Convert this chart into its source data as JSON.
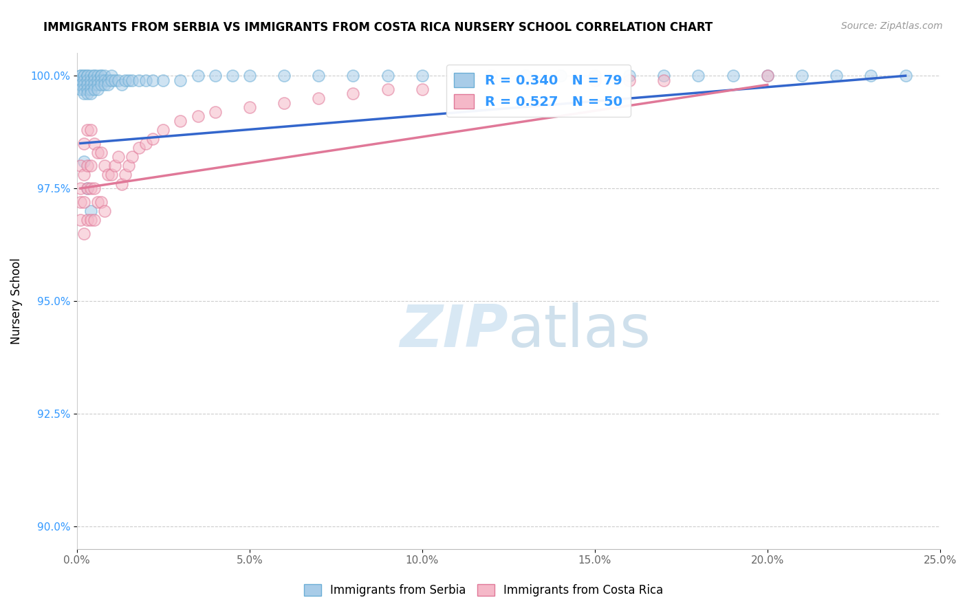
{
  "title": "IMMIGRANTS FROM SERBIA VS IMMIGRANTS FROM COSTA RICA NURSERY SCHOOL CORRELATION CHART",
  "source": "Source: ZipAtlas.com",
  "ylabel": "Nursery School",
  "xlim": [
    0.0,
    0.25
  ],
  "ylim": [
    0.895,
    1.005
  ],
  "xticks": [
    0.0,
    0.05,
    0.1,
    0.15,
    0.2,
    0.25
  ],
  "xticklabels": [
    "0.0%",
    "5.0%",
    "10.0%",
    "15.0%",
    "20.0%",
    "25.0%"
  ],
  "yticks": [
    0.9,
    0.925,
    0.95,
    0.975,
    1.0
  ],
  "yticklabels": [
    "90.0%",
    "92.5%",
    "95.0%",
    "97.5%",
    "100.0%"
  ],
  "serbia_color": "#a8cce8",
  "costarica_color": "#f5b8c8",
  "serbia_edge": "#6baed6",
  "costarica_edge": "#e07898",
  "serbia_line_color": "#3366cc",
  "costarica_line_color": "#e07898",
  "serbia_R": 0.34,
  "serbia_N": 79,
  "costarica_R": 0.527,
  "costarica_N": 50,
  "legend_label_serbia": "Immigrants from Serbia",
  "legend_label_costarica": "Immigrants from Costa Rica",
  "serbia_x": [
    0.001,
    0.001,
    0.001,
    0.001,
    0.001,
    0.002,
    0.002,
    0.002,
    0.002,
    0.002,
    0.002,
    0.003,
    0.003,
    0.003,
    0.003,
    0.003,
    0.003,
    0.004,
    0.004,
    0.004,
    0.004,
    0.004,
    0.005,
    0.005,
    0.005,
    0.005,
    0.005,
    0.006,
    0.006,
    0.006,
    0.006,
    0.007,
    0.007,
    0.007,
    0.007,
    0.008,
    0.008,
    0.008,
    0.009,
    0.009,
    0.01,
    0.01,
    0.011,
    0.012,
    0.013,
    0.014,
    0.015,
    0.016,
    0.018,
    0.02,
    0.022,
    0.025,
    0.03,
    0.035,
    0.04,
    0.045,
    0.05,
    0.06,
    0.07,
    0.08,
    0.09,
    0.1,
    0.11,
    0.12,
    0.13,
    0.14,
    0.15,
    0.16,
    0.17,
    0.18,
    0.19,
    0.2,
    0.21,
    0.22,
    0.23,
    0.24,
    0.002,
    0.003,
    0.004
  ],
  "serbia_y": [
    1.0,
    1.0,
    0.999,
    0.998,
    0.997,
    1.0,
    1.0,
    0.999,
    0.998,
    0.997,
    0.996,
    1.0,
    1.0,
    0.999,
    0.998,
    0.997,
    0.996,
    1.0,
    0.999,
    0.998,
    0.997,
    0.996,
    1.0,
    1.0,
    0.999,
    0.998,
    0.997,
    1.0,
    0.999,
    0.998,
    0.997,
    1.0,
    1.0,
    0.999,
    0.998,
    1.0,
    0.999,
    0.998,
    0.999,
    0.998,
    1.0,
    0.999,
    0.999,
    0.999,
    0.998,
    0.999,
    0.999,
    0.999,
    0.999,
    0.999,
    0.999,
    0.999,
    0.999,
    1.0,
    1.0,
    1.0,
    1.0,
    1.0,
    1.0,
    1.0,
    1.0,
    1.0,
    1.0,
    1.0,
    1.0,
    1.0,
    1.0,
    1.0,
    1.0,
    1.0,
    1.0,
    1.0,
    1.0,
    1.0,
    1.0,
    1.0,
    0.981,
    0.975,
    0.97
  ],
  "costarica_x": [
    0.001,
    0.001,
    0.001,
    0.001,
    0.002,
    0.002,
    0.002,
    0.002,
    0.003,
    0.003,
    0.003,
    0.003,
    0.004,
    0.004,
    0.004,
    0.004,
    0.005,
    0.005,
    0.005,
    0.006,
    0.006,
    0.007,
    0.007,
    0.008,
    0.008,
    0.009,
    0.01,
    0.011,
    0.012,
    0.013,
    0.014,
    0.015,
    0.016,
    0.018,
    0.02,
    0.022,
    0.025,
    0.03,
    0.035,
    0.04,
    0.05,
    0.06,
    0.07,
    0.08,
    0.09,
    0.1,
    0.15,
    0.16,
    0.17,
    0.2
  ],
  "costarica_y": [
    0.98,
    0.975,
    0.972,
    0.968,
    0.985,
    0.978,
    0.972,
    0.965,
    0.988,
    0.98,
    0.975,
    0.968,
    0.988,
    0.98,
    0.975,
    0.968,
    0.985,
    0.975,
    0.968,
    0.983,
    0.972,
    0.983,
    0.972,
    0.98,
    0.97,
    0.978,
    0.978,
    0.98,
    0.982,
    0.976,
    0.978,
    0.98,
    0.982,
    0.984,
    0.985,
    0.986,
    0.988,
    0.99,
    0.991,
    0.992,
    0.993,
    0.994,
    0.995,
    0.996,
    0.997,
    0.997,
    0.999,
    0.999,
    0.999,
    1.0
  ],
  "serbia_trendline_x": [
    0.001,
    0.24
  ],
  "serbia_trendline_y": [
    0.985,
    1.0
  ],
  "costarica_trendline_x": [
    0.001,
    0.2
  ],
  "costarica_trendline_y": [
    0.975,
    0.998
  ]
}
